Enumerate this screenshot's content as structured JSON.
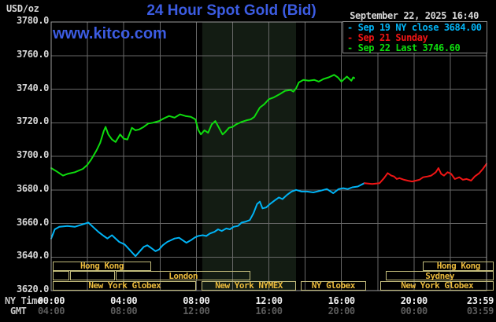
{
  "colors": {
    "background": "#000000",
    "grid": "#686868",
    "plot_border": "#9d9d9d",
    "legend_border": "#8a8a8a",
    "shade": "#131c13",
    "title_blue": "#3c5ce2",
    "text_light": "#d6d6d6",
    "text_bright": "#f0f0f0",
    "text_dim": "#5c5c5c",
    "axis_header": "#c6c6c6",
    "cyan": "#00b3f5",
    "red": "#ef1515",
    "green": "#0edc0e",
    "session_border": "#c3bc7c",
    "session_text": "#eaba3c"
  },
  "header": {
    "unit": "USD/oz",
    "title": "24 Hour Spot Gold (Bid)",
    "datetime": "September 22, 2025 16:40",
    "watermark": "www.kitco.com"
  },
  "legend": {
    "entries": [
      {
        "marker": "-",
        "label": "Sep 19 NY close 3684.00",
        "color": "cyan"
      },
      {
        "marker": "-",
        "label": "Sep 21 Sunday",
        "color": "red"
      },
      {
        "marker": "-",
        "label": "Sep 22 Last 3746.60",
        "color": "green"
      }
    ]
  },
  "axis": {
    "ny_label": "NY Time",
    "gmt_label": "GMT"
  },
  "sessions": [
    {
      "row": 0,
      "label": "Hong Kong",
      "hours": [
        0.1,
        5.5
      ]
    },
    {
      "row": 0,
      "label": "Hong Kong",
      "hours": [
        20.5,
        24.4
      ]
    },
    {
      "row": 1,
      "label": "",
      "hours": [
        0.1,
        1.0
      ]
    },
    {
      "row": 1,
      "label": "",
      "hours": [
        1.05,
        3.5
      ]
    },
    {
      "row": 1,
      "label": "London",
      "hours": [
        3.55,
        11.0
      ]
    },
    {
      "row": 1,
      "label": "Sydney",
      "hours": [
        18.45,
        24.4
      ]
    },
    {
      "row": 2,
      "label": "New York Globex",
      "hours": [
        0.1,
        8.0
      ]
    },
    {
      "row": 2,
      "label": "New York NYMEX",
      "hours": [
        8.3,
        13.5
      ]
    },
    {
      "row": 2,
      "label": "NY Globex",
      "hours": [
        13.75,
        17.35
      ]
    },
    {
      "row": 2,
      "label": "New York Globex",
      "hours": [
        18.15,
        24.4
      ]
    }
  ],
  "chart_data": {
    "type": "line",
    "title": "24 Hour Spot Gold (Bid)",
    "ylabel": "USD/oz",
    "xlabel": "NY Time",
    "grid": true,
    "legend_position": "top-right",
    "x_axis": {
      "range_hours": [
        0,
        24
      ],
      "gridline_every_hours": 2,
      "ticks": [
        {
          "h": 0,
          "ny": "00:00",
          "gmt": "04:00"
        },
        {
          "h": 4,
          "ny": "04:00",
          "gmt": "08:00"
        },
        {
          "h": 8,
          "ny": "08:00",
          "gmt": "12:00"
        },
        {
          "h": 12,
          "ny": "12:00",
          "gmt": "16:00"
        },
        {
          "h": 16,
          "ny": "16:00",
          "gmt": "20:00"
        },
        {
          "h": 20,
          "ny": "20:00",
          "gmt": "00:00"
        },
        {
          "h": 23.98,
          "ny": "23:59",
          "gmt": "03:59",
          "align": "right"
        }
      ]
    },
    "y_axis": {
      "unit": "USD/oz",
      "range": [
        3620,
        3780
      ],
      "tick_step": 20,
      "tick_labels": [
        "3780.0",
        "3760.0",
        "3740.0",
        "3720.0",
        "3700.0",
        "3680.0",
        "3660.0",
        "3640.0",
        "3620.0"
      ]
    },
    "shaded_region_hours": [
      8.33,
      13.5
    ],
    "series": [
      {
        "name": "Sep 19 NY close",
        "color": "cyan",
        "close_value": 3684.0,
        "points": [
          [
            0,
            3651
          ],
          [
            0.2,
            3656.5
          ],
          [
            0.45,
            3658
          ],
          [
            0.9,
            3658.5
          ],
          [
            1.3,
            3658
          ],
          [
            1.75,
            3659.5
          ],
          [
            2.05,
            3660.5
          ],
          [
            2.3,
            3658
          ],
          [
            2.6,
            3655
          ],
          [
            2.9,
            3652.5
          ],
          [
            3.1,
            3651
          ],
          [
            3.35,
            3653
          ],
          [
            3.55,
            3651
          ],
          [
            3.75,
            3649
          ],
          [
            4.05,
            3647.5
          ],
          [
            4.35,
            3644
          ],
          [
            4.65,
            3640.5
          ],
          [
            4.85,
            3643
          ],
          [
            5.1,
            3646
          ],
          [
            5.3,
            3647
          ],
          [
            5.5,
            3645.5
          ],
          [
            5.75,
            3643.5
          ],
          [
            5.95,
            3644.5
          ],
          [
            6.15,
            3647
          ],
          [
            6.4,
            3649
          ],
          [
            6.6,
            3650
          ],
          [
            6.8,
            3651
          ],
          [
            7.05,
            3651.5
          ],
          [
            7.25,
            3650
          ],
          [
            7.45,
            3648.5
          ],
          [
            7.7,
            3650
          ],
          [
            7.9,
            3651.5
          ],
          [
            8.1,
            3652.5
          ],
          [
            8.35,
            3653
          ],
          [
            8.55,
            3652.5
          ],
          [
            8.75,
            3654
          ],
          [
            9.0,
            3655
          ],
          [
            9.2,
            3656.5
          ],
          [
            9.4,
            3655.5
          ],
          [
            9.65,
            3657
          ],
          [
            9.85,
            3656.5
          ],
          [
            10.05,
            3658
          ],
          [
            10.3,
            3658.5
          ],
          [
            10.5,
            3660.5
          ],
          [
            10.7,
            3661
          ],
          [
            10.95,
            3662
          ],
          [
            11.15,
            3666
          ],
          [
            11.35,
            3671.5
          ],
          [
            11.5,
            3673
          ],
          [
            11.65,
            3669
          ],
          [
            11.85,
            3669.5
          ],
          [
            12.05,
            3671.5
          ],
          [
            12.3,
            3673.5
          ],
          [
            12.55,
            3675.5
          ],
          [
            12.75,
            3674.5
          ],
          [
            13.0,
            3677
          ],
          [
            13.25,
            3679
          ],
          [
            13.5,
            3680
          ],
          [
            13.8,
            3679
          ],
          [
            14.1,
            3679
          ],
          [
            14.45,
            3678.5
          ],
          [
            14.85,
            3679.5
          ],
          [
            15.2,
            3680.5
          ],
          [
            15.55,
            3678
          ],
          [
            15.85,
            3680.5
          ],
          [
            16.1,
            3681
          ],
          [
            16.35,
            3680.5
          ],
          [
            16.6,
            3681.5
          ],
          [
            16.9,
            3682
          ],
          [
            17.27,
            3684
          ]
        ]
      },
      {
        "name": "Sep 21 Sunday",
        "color": "red",
        "points": [
          [
            17.27,
            3684
          ],
          [
            17.7,
            3683.5
          ],
          [
            18.1,
            3684
          ],
          [
            18.35,
            3687
          ],
          [
            18.55,
            3690
          ],
          [
            18.75,
            3688.5
          ],
          [
            18.9,
            3688
          ],
          [
            19.05,
            3686.5
          ],
          [
            19.2,
            3687
          ],
          [
            19.45,
            3686
          ],
          [
            19.65,
            3685.5
          ],
          [
            19.9,
            3685
          ],
          [
            20.1,
            3685.5
          ],
          [
            20.3,
            3686
          ],
          [
            20.5,
            3687.5
          ],
          [
            20.75,
            3688
          ],
          [
            20.95,
            3688.5
          ],
          [
            21.2,
            3690.5
          ],
          [
            21.35,
            3693
          ],
          [
            21.5,
            3689.5
          ],
          [
            21.65,
            3688.5
          ],
          [
            21.85,
            3690.5
          ],
          [
            22.05,
            3689.5
          ],
          [
            22.25,
            3686.5
          ],
          [
            22.5,
            3687.5
          ],
          [
            22.7,
            3686
          ],
          [
            22.9,
            3686.5
          ],
          [
            23.15,
            3685.5
          ],
          [
            23.35,
            3688
          ],
          [
            23.6,
            3690
          ],
          [
            23.8,
            3692.5
          ],
          [
            24.0,
            3695.5
          ]
        ]
      },
      {
        "name": "Sep 22 Last",
        "color": "green",
        "last_value": 3746.6,
        "points": [
          [
            0,
            3693
          ],
          [
            0.3,
            3691
          ],
          [
            0.65,
            3688.5
          ],
          [
            0.9,
            3689.5
          ],
          [
            1.3,
            3690.5
          ],
          [
            1.75,
            3692.5
          ],
          [
            2.0,
            3695
          ],
          [
            2.2,
            3698
          ],
          [
            2.5,
            3703.5
          ],
          [
            2.7,
            3708
          ],
          [
            2.9,
            3715
          ],
          [
            3.0,
            3717.5
          ],
          [
            3.15,
            3713
          ],
          [
            3.35,
            3710
          ],
          [
            3.55,
            3708.5
          ],
          [
            3.8,
            3713
          ],
          [
            4.0,
            3710.5
          ],
          [
            4.2,
            3710
          ],
          [
            4.45,
            3717
          ],
          [
            4.65,
            3715.5
          ],
          [
            4.85,
            3716
          ],
          [
            5.1,
            3717.5
          ],
          [
            5.35,
            3719.5
          ],
          [
            5.6,
            3720
          ],
          [
            5.95,
            3721
          ],
          [
            6.2,
            3722.5
          ],
          [
            6.5,
            3724
          ],
          [
            6.8,
            3723
          ],
          [
            7.1,
            3725
          ],
          [
            7.4,
            3724
          ],
          [
            7.7,
            3723.5
          ],
          [
            7.95,
            3722
          ],
          [
            8.1,
            3716
          ],
          [
            8.25,
            3713
          ],
          [
            8.45,
            3715.5
          ],
          [
            8.65,
            3714
          ],
          [
            8.85,
            3719
          ],
          [
            9.05,
            3721
          ],
          [
            9.25,
            3717
          ],
          [
            9.45,
            3713
          ],
          [
            9.6,
            3714.5
          ],
          [
            9.8,
            3717
          ],
          [
            10.0,
            3717.5
          ],
          [
            10.2,
            3719
          ],
          [
            10.5,
            3720.5
          ],
          [
            10.8,
            3721.5
          ],
          [
            11.0,
            3722
          ],
          [
            11.2,
            3723.5
          ],
          [
            11.5,
            3729
          ],
          [
            11.75,
            3731
          ],
          [
            12.0,
            3734
          ],
          [
            12.25,
            3735
          ],
          [
            12.6,
            3737
          ],
          [
            12.9,
            3739
          ],
          [
            13.2,
            3739.5
          ],
          [
            13.35,
            3738.5
          ],
          [
            13.5,
            3740.5
          ],
          [
            13.65,
            3744
          ],
          [
            13.9,
            3745.5
          ],
          [
            14.2,
            3745
          ],
          [
            14.5,
            3745.5
          ],
          [
            14.75,
            3744.5
          ],
          [
            15.0,
            3746
          ],
          [
            15.3,
            3747
          ],
          [
            15.6,
            3748.5
          ],
          [
            15.8,
            3747
          ],
          [
            16.0,
            3744.5
          ],
          [
            16.15,
            3746
          ],
          [
            16.3,
            3747.5
          ],
          [
            16.45,
            3746
          ],
          [
            16.55,
            3745
          ],
          [
            16.65,
            3747
          ],
          [
            16.71,
            3746.6
          ]
        ]
      }
    ]
  }
}
